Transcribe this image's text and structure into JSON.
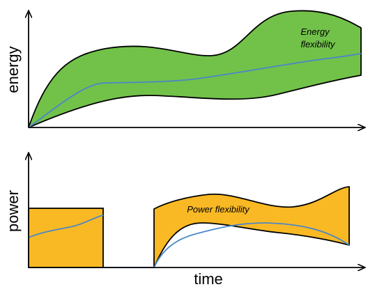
{
  "labels": {
    "energy_axis": "energy",
    "power_axis": "power",
    "time_axis": "time",
    "energy_flex_line1": "Energy",
    "energy_flex_line2": "flexibility",
    "power_flex": "Power flexibility"
  },
  "colors": {
    "energy_fill": "#72c24a",
    "power_fill": "#f9b924",
    "curve": "#4a86c8",
    "outline": "#000000"
  }
}
